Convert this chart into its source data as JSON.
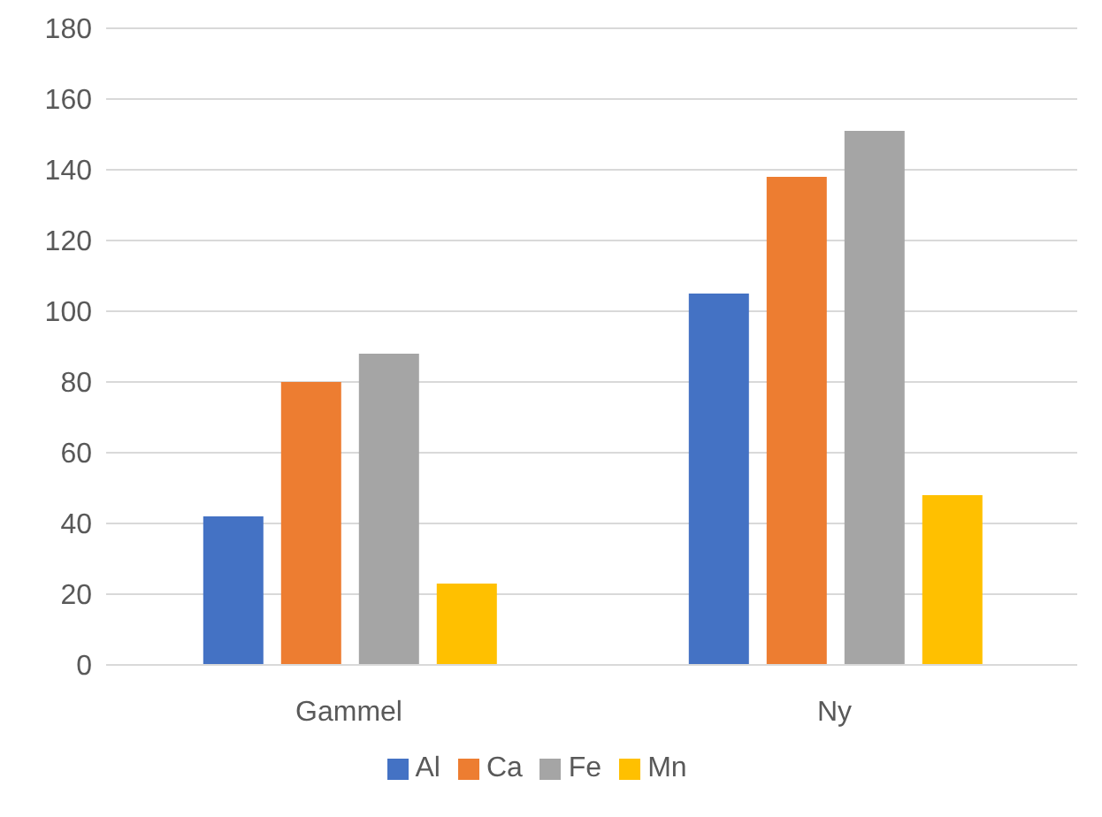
{
  "chart_data": {
    "type": "bar",
    "categories": [
      "Gammel",
      "Ny"
    ],
    "series": [
      {
        "name": "Al",
        "color": "#4472c4",
        "values": [
          42,
          105
        ]
      },
      {
        "name": "Ca",
        "color": "#ed7d31",
        "values": [
          80,
          138
        ]
      },
      {
        "name": "Fe",
        "color": "#a5a5a5",
        "values": [
          88,
          151
        ]
      },
      {
        "name": "Mn",
        "color": "#ffc000",
        "values": [
          23,
          48
        ]
      }
    ],
    "ylim": [
      0,
      180
    ],
    "yticks": [
      0,
      20,
      40,
      60,
      80,
      100,
      120,
      140,
      160,
      180
    ],
    "grid": "y",
    "legend": "bottom"
  }
}
